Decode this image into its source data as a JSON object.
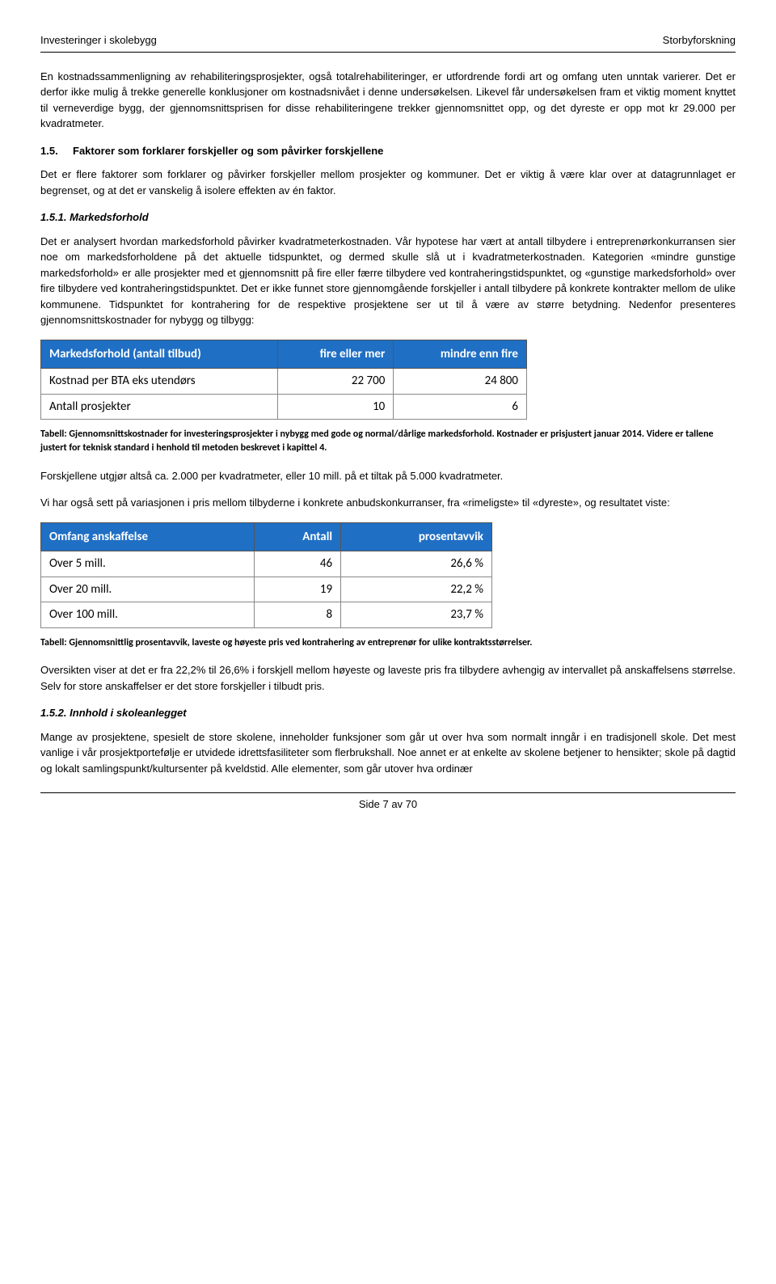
{
  "header": {
    "left": "Investeringer i skolebygg",
    "right": "Storbyforskning"
  },
  "p1": "En kostnadssammenligning av rehabiliteringsprosjekter, også totalrehabiliteringer, er utfordrende fordi art og omfang uten unntak varierer. Det er derfor ikke mulig å trekke generelle konklusjoner om kostnadsnivået i denne undersøkelsen. Likevel får undersøkelsen fram et viktig moment knyttet til verneverdige bygg, der gjennomsnittsprisen for disse rehabiliteringene trekker gjennomsnittet opp, og det dyreste er opp mot kr 29.000 per kvadratmeter.",
  "s15": {
    "num": "1.5.",
    "title": "Faktorer som forklarer forskjeller og som påvirker forskjellene"
  },
  "p2": "Det er flere faktorer som forklarer og påvirker forskjeller mellom prosjekter og kommuner. Det er viktig å være klar over at datagrunnlaget er begrenset, og at det er vanskelig å isolere effekten av én faktor.",
  "s151": "1.5.1. Markedsforhold",
  "p3": "Det er analysert hvordan markedsforhold påvirker kvadratmeterkostnaden. Vår hypotese har vært at antall tilbydere i entreprenørkonkurransen sier noe om markedsforholdene på det aktuelle tidspunktet, og dermed skulle slå ut i kvadratmeterkostnaden. Kategorien «mindre gunstige markedsforhold» er alle prosjekter med et gjennomsnitt på fire eller færre tilbydere ved kontraheringstidspunktet, og «gunstige markedsforhold» over fire tilbydere ved kontraheringstidspunktet. Det er ikke funnet store gjennomgående forskjeller i antall tilbydere på konkrete kontrakter mellom de ulike kommunene. Tidspunktet for kontrahering for de respektive prosjektene ser ut til å være av større betydning. Nedenfor presenteres gjennomsnittskostnader for nybygg og tilbygg:",
  "table1": {
    "headers": [
      "Markedsforhold (antall tilbud)",
      "fire eller mer",
      "mindre enn fire"
    ],
    "rows": [
      [
        "Kostnad per BTA eks utendørs",
        "22 700",
        "24 800"
      ],
      [
        "Antall prosjekter",
        "10",
        "6"
      ]
    ],
    "colors": {
      "header_bg": "#1f6fc4",
      "header_fg": "#ffffff",
      "border": "#888888"
    }
  },
  "cap1": "Tabell: Gjennomsnittskostnader for investeringsprosjekter i nybygg med gode og normal/dårlige markedsforhold. Kostnader er prisjustert januar 2014. Videre er tallene justert for teknisk standard i henhold til metoden beskrevet i kapittel 4.",
  "p4": "Forskjellene utgjør altså ca. 2.000 per kvadratmeter, eller 10 mill. på et tiltak på 5.000 kvadratmeter.",
  "p5": "Vi har også sett på variasjonen i pris mellom tilbyderne i konkrete anbudskonkurranser, fra «rimeligste» til «dyreste», og resultatet viste:",
  "table2": {
    "headers": [
      "Omfang anskaffelse",
      "Antall",
      "prosentavvik"
    ],
    "rows": [
      [
        "Over 5 mill.",
        "46",
        "26,6 %"
      ],
      [
        "Over 20 mill.",
        "19",
        "22,2 %"
      ],
      [
        "Over 100 mill.",
        "8",
        "23,7 %"
      ]
    ],
    "colors": {
      "header_bg": "#1f6fc4",
      "header_fg": "#ffffff",
      "border": "#888888"
    }
  },
  "cap2": "Tabell: Gjennomsnittlig prosentavvik, laveste og høyeste pris ved kontrahering av entreprenør for ulike kontraktsstørrelser.",
  "p6": "Oversikten viser at det er fra 22,2% til 26,6% i forskjell mellom høyeste og laveste pris fra tilbydere avhengig av intervallet på anskaffelsens størrelse. Selv for store anskaffelser er det store forskjeller i tilbudt pris.",
  "s152": "1.5.2. Innhold i skoleanlegget",
  "p7": "Mange av prosjektene, spesielt de store skolene, inneholder funksjoner som går ut over hva som normalt inngår i en tradisjonell skole. Det mest vanlige i vår prosjektportefølje er utvidede idrettsfasiliteter som flerbrukshall. Noe annet er at enkelte av skolene betjener to hensikter; skole på dagtid og lokalt samlingspunkt/kultursenter på kveldstid. Alle elementer, som går utover hva ordinær",
  "footer": "Side 7 av 70"
}
